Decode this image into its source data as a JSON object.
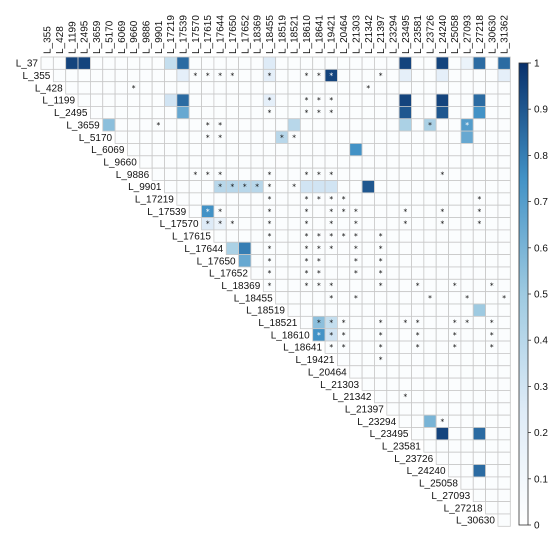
{
  "chart_data": {
    "type": "heatmap",
    "title": "",
    "layout": "upper-triangular correlation matrix",
    "labels": [
      "L_37",
      "L_355",
      "L_428",
      "L_1199",
      "L_2495",
      "L_3659",
      "L_5170",
      "L_6069",
      "L_9660",
      "L_9886",
      "L_9901",
      "L_17219",
      "L_17539",
      "L_17570",
      "L_17615",
      "L_17644",
      "L_17650",
      "L_17652",
      "L_18369",
      "L_18455",
      "L_18519",
      "L_18521",
      "L_18610",
      "L_18641",
      "L_19421",
      "L_20464",
      "L_21303",
      "L_21342",
      "L_21397",
      "L_23294",
      "L_23495",
      "L_23581",
      "L_23726",
      "L_24240",
      "L_25058",
      "L_27093",
      "L_27218",
      "L_30630",
      "L_31362"
    ],
    "row_labels_count": 38,
    "col_start_index": 1,
    "color_scale": {
      "min": 0,
      "max": 1,
      "colors": [
        "#ffffff",
        "#deebf7",
        "#9ecae1",
        "#4292c6",
        "#08306b"
      ],
      "ticks": [
        "0",
        "0.1",
        "0.2",
        "0.3",
        "0.4",
        "0.5",
        "0.6",
        "0.7",
        "0.8",
        "0.9",
        "1"
      ]
    },
    "background_value": 0.03,
    "significance_marker": "*",
    "cells": [
      [
        0,
        2,
        0.95
      ],
      [
        0,
        3,
        0.95
      ],
      [
        0,
        10,
        0.35
      ],
      [
        0,
        11,
        0.85
      ],
      [
        0,
        18,
        0.25
      ],
      [
        0,
        29,
        0.95
      ],
      [
        0,
        32,
        0.95
      ],
      [
        0,
        34,
        0.15
      ],
      [
        0,
        35,
        0.85
      ],
      [
        0,
        37,
        0.85
      ],
      [
        0,
        38,
        0.35
      ],
      [
        1,
        11,
        0.2
      ],
      [
        1,
        18,
        0.2
      ],
      [
        1,
        23,
        0.95
      ],
      [
        1,
        29,
        0.2
      ],
      [
        1,
        32,
        0.2
      ],
      [
        1,
        37,
        0.2
      ],
      [
        1,
        38,
        0.2
      ],
      [
        3,
        10,
        0.3
      ],
      [
        3,
        11,
        0.85
      ],
      [
        3,
        18,
        0.2
      ],
      [
        3,
        29,
        0.95
      ],
      [
        3,
        32,
        0.95
      ],
      [
        3,
        35,
        0.85
      ],
      [
        3,
        38,
        0.9
      ],
      [
        4,
        11,
        0.65
      ],
      [
        4,
        29,
        0.9
      ],
      [
        4,
        32,
        0.9
      ],
      [
        4,
        35,
        0.75
      ],
      [
        4,
        38,
        0.9
      ],
      [
        5,
        5,
        0.55
      ],
      [
        5,
        20,
        0.4
      ],
      [
        5,
        29,
        0.45
      ],
      [
        5,
        31,
        0.45
      ],
      [
        5,
        34,
        0.7
      ],
      [
        6,
        19,
        0.4
      ],
      [
        6,
        34,
        0.65
      ],
      [
        7,
        25,
        0.75
      ],
      [
        8,
        19,
        0.02
      ],
      [
        10,
        14,
        0.4
      ],
      [
        10,
        15,
        0.4
      ],
      [
        10,
        16,
        0.4
      ],
      [
        10,
        17,
        0.4
      ],
      [
        10,
        21,
        0.3
      ],
      [
        10,
        22,
        0.3
      ],
      [
        10,
        23,
        0.3
      ],
      [
        10,
        26,
        0.9
      ],
      [
        12,
        13,
        0.75
      ],
      [
        13,
        13,
        0.25
      ],
      [
        13,
        14,
        0.15
      ],
      [
        15,
        15,
        0.45
      ],
      [
        15,
        16,
        0.8
      ],
      [
        16,
        16,
        0.65
      ],
      [
        21,
        22,
        0.55
      ],
      [
        22,
        22,
        0.75
      ],
      [
        21,
        23,
        0.35
      ],
      [
        22,
        21,
        0.45
      ],
      [
        22,
        23,
        0.3
      ],
      [
        20,
        35,
        0.5
      ],
      [
        29,
        31,
        0.6
      ],
      [
        30,
        32,
        0.95
      ],
      [
        30,
        35,
        0.85
      ],
      [
        30,
        38,
        0.85
      ],
      [
        33,
        35,
        0.85
      ],
      [
        33,
        38,
        0.95
      ],
      [
        36,
        38,
        0.7
      ]
    ],
    "stars": [
      [
        0,
        38
      ],
      [
        1,
        12
      ],
      [
        1,
        13
      ],
      [
        1,
        14
      ],
      [
        1,
        15
      ],
      [
        1,
        18
      ],
      [
        1,
        21
      ],
      [
        1,
        22
      ],
      [
        1,
        23
      ],
      [
        1,
        27
      ],
      [
        1,
        38
      ],
      [
        2,
        7
      ],
      [
        2,
        26
      ],
      [
        3,
        18
      ],
      [
        3,
        21
      ],
      [
        3,
        22
      ],
      [
        3,
        23
      ],
      [
        3,
        38
      ],
      [
        4,
        18
      ],
      [
        4,
        21
      ],
      [
        4,
        22
      ],
      [
        4,
        23
      ],
      [
        4,
        38
      ],
      [
        5,
        9
      ],
      [
        5,
        13
      ],
      [
        5,
        14
      ],
      [
        5,
        31
      ],
      [
        5,
        34
      ],
      [
        6,
        13
      ],
      [
        6,
        14
      ],
      [
        6,
        19
      ],
      [
        6,
        20
      ],
      [
        9,
        12
      ],
      [
        9,
        13
      ],
      [
        9,
        14
      ],
      [
        9,
        18
      ],
      [
        9,
        21
      ],
      [
        9,
        22
      ],
      [
        9,
        23
      ],
      [
        9,
        32
      ],
      [
        10,
        14
      ],
      [
        10,
        15
      ],
      [
        10,
        16
      ],
      [
        10,
        17
      ],
      [
        10,
        18
      ],
      [
        10,
        20
      ],
      [
        11,
        18
      ],
      [
        11,
        21
      ],
      [
        11,
        22
      ],
      [
        11,
        23
      ],
      [
        11,
        24
      ],
      [
        11,
        35
      ],
      [
        12,
        13
      ],
      [
        12,
        14
      ],
      [
        12,
        18
      ],
      [
        12,
        21
      ],
      [
        12,
        23
      ],
      [
        12,
        24
      ],
      [
        12,
        25
      ],
      [
        12,
        29
      ],
      [
        12,
        32
      ],
      [
        12,
        35
      ],
      [
        13,
        13
      ],
      [
        13,
        14
      ],
      [
        13,
        15
      ],
      [
        13,
        18
      ],
      [
        13,
        21
      ],
      [
        13,
        23
      ],
      [
        13,
        25
      ],
      [
        13,
        29
      ],
      [
        13,
        32
      ],
      [
        13,
        35
      ],
      [
        14,
        18
      ],
      [
        14,
        21
      ],
      [
        14,
        22
      ],
      [
        14,
        23
      ],
      [
        14,
        24
      ],
      [
        14,
        25
      ],
      [
        14,
        27
      ],
      [
        15,
        18
      ],
      [
        15,
        21
      ],
      [
        15,
        22
      ],
      [
        15,
        23
      ],
      [
        15,
        25
      ],
      [
        15,
        27
      ],
      [
        16,
        18
      ],
      [
        16,
        21
      ],
      [
        16,
        22
      ],
      [
        16,
        25
      ],
      [
        16,
        27
      ],
      [
        17,
        18
      ],
      [
        17,
        21
      ],
      [
        17,
        22
      ],
      [
        17,
        25
      ],
      [
        17,
        27
      ],
      [
        18,
        18
      ],
      [
        18,
        21
      ],
      [
        18,
        22
      ],
      [
        18,
        23
      ],
      [
        18,
        27
      ],
      [
        18,
        30
      ],
      [
        18,
        33
      ],
      [
        18,
        36
      ],
      [
        18,
        38
      ],
      [
        19,
        23
      ],
      [
        19,
        25
      ],
      [
        19,
        31
      ],
      [
        19,
        34
      ],
      [
        19,
        37
      ],
      [
        21,
        22
      ],
      [
        21,
        23
      ],
      [
        21,
        24
      ],
      [
        21,
        27
      ],
      [
        21,
        29
      ],
      [
        21,
        30
      ],
      [
        21,
        33
      ],
      [
        21,
        34
      ],
      [
        21,
        36
      ],
      [
        21,
        38
      ],
      [
        22,
        22
      ],
      [
        22,
        23
      ],
      [
        22,
        24
      ],
      [
        22,
        27
      ],
      [
        22,
        30
      ],
      [
        22,
        33
      ],
      [
        22,
        36
      ],
      [
        22,
        38
      ],
      [
        23,
        23
      ],
      [
        23,
        24
      ],
      [
        23,
        27
      ],
      [
        23,
        30
      ],
      [
        23,
        33
      ],
      [
        23,
        36
      ],
      [
        23,
        38
      ],
      [
        24,
        27
      ],
      [
        24,
        38
      ],
      [
        27,
        29
      ],
      [
        29,
        32
      ],
      [
        30,
        38
      ],
      [
        33,
        38
      ],
      [
        36,
        38
      ]
    ]
  }
}
